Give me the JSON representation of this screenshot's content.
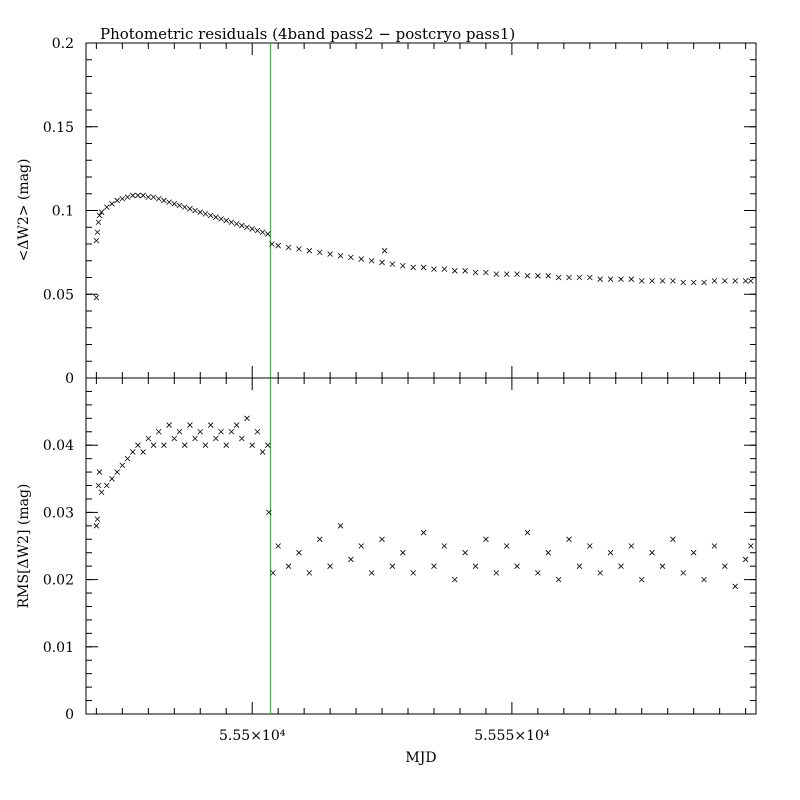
{
  "chart_data": {
    "type": "scatter",
    "title": "Photometric residuals (4band pass2 − postcryo pass1)",
    "xlabel": "MJD",
    "xlim": [
      55468,
      55597
    ],
    "xticks": [
      {
        "value": 55500,
        "label": "5.55×10⁴"
      },
      {
        "value": 55550,
        "label": "5.555×10⁴"
      }
    ],
    "vline": {
      "x": 55503.5,
      "color": "#00cc00"
    },
    "marker": "x",
    "panels": [
      {
        "name": "mean",
        "ylabel": "<ΔW2> (mag)",
        "ylim": [
          0,
          0.2
        ],
        "yticks": [
          {
            "value": 0,
            "label": "0"
          },
          {
            "value": 0.05,
            "label": "0.05"
          },
          {
            "value": 0.1,
            "label": "0.1"
          },
          {
            "value": 0.15,
            "label": "0.15"
          },
          {
            "value": 0.2,
            "label": "0.2"
          }
        ],
        "points": [
          [
            55470.0,
            0.048
          ],
          [
            55470.0,
            0.082
          ],
          [
            55470.2,
            0.087
          ],
          [
            55470.4,
            0.093
          ],
          [
            55470.6,
            0.097
          ],
          [
            55471,
            0.099
          ],
          [
            55472,
            0.102
          ],
          [
            55473,
            0.104
          ],
          [
            55474,
            0.106
          ],
          [
            55475,
            0.107
          ],
          [
            55476,
            0.108
          ],
          [
            55477,
            0.109
          ],
          [
            55478,
            0.109
          ],
          [
            55479,
            0.109
          ],
          [
            55480,
            0.108
          ],
          [
            55481,
            0.108
          ],
          [
            55482,
            0.107
          ],
          [
            55483,
            0.106
          ],
          [
            55484,
            0.105
          ],
          [
            55485,
            0.104
          ],
          [
            55486,
            0.103
          ],
          [
            55487,
            0.102
          ],
          [
            55488,
            0.101
          ],
          [
            55489,
            0.1
          ],
          [
            55490,
            0.099
          ],
          [
            55491,
            0.098
          ],
          [
            55492,
            0.097
          ],
          [
            55493,
            0.096
          ],
          [
            55494,
            0.095
          ],
          [
            55495,
            0.094
          ],
          [
            55496,
            0.093
          ],
          [
            55497,
            0.092
          ],
          [
            55498,
            0.091
          ],
          [
            55499,
            0.09
          ],
          [
            55500,
            0.089
          ],
          [
            55501,
            0.088
          ],
          [
            55502,
            0.087
          ],
          [
            55503,
            0.086
          ],
          [
            55503.8,
            0.08
          ],
          [
            55505,
            0.079
          ],
          [
            55507,
            0.078
          ],
          [
            55509,
            0.077
          ],
          [
            55511,
            0.076
          ],
          [
            55513,
            0.075
          ],
          [
            55515,
            0.074
          ],
          [
            55517,
            0.073
          ],
          [
            55519,
            0.072
          ],
          [
            55521,
            0.071
          ],
          [
            55523,
            0.07
          ],
          [
            55525,
            0.069
          ],
          [
            55525.5,
            0.076
          ],
          [
            55527,
            0.068
          ],
          [
            55529,
            0.067
          ],
          [
            55531,
            0.066
          ],
          [
            55533,
            0.066
          ],
          [
            55535,
            0.065
          ],
          [
            55537,
            0.065
          ],
          [
            55539,
            0.064
          ],
          [
            55541,
            0.064
          ],
          [
            55543,
            0.063
          ],
          [
            55545,
            0.063
          ],
          [
            55547,
            0.062
          ],
          [
            55549,
            0.062
          ],
          [
            55551,
            0.062
          ],
          [
            55553,
            0.061
          ],
          [
            55555,
            0.061
          ],
          [
            55557,
            0.061
          ],
          [
            55559,
            0.06
          ],
          [
            55561,
            0.06
          ],
          [
            55563,
            0.06
          ],
          [
            55565,
            0.06
          ],
          [
            55567,
            0.059
          ],
          [
            55569,
            0.059
          ],
          [
            55571,
            0.059
          ],
          [
            55573,
            0.059
          ],
          [
            55575,
            0.058
          ],
          [
            55577,
            0.058
          ],
          [
            55579,
            0.058
          ],
          [
            55581,
            0.058
          ],
          [
            55583,
            0.057
          ],
          [
            55585,
            0.057
          ],
          [
            55587,
            0.057
          ],
          [
            55589,
            0.058
          ],
          [
            55591,
            0.058
          ],
          [
            55593,
            0.058
          ],
          [
            55595,
            0.058
          ],
          [
            55596,
            0.058
          ]
        ]
      },
      {
        "name": "rms",
        "ylabel": "RMS[ΔW2] (mag)",
        "ylim": [
          0,
          0.05
        ],
        "yticks": [
          {
            "value": 0,
            "label": "0"
          },
          {
            "value": 0.01,
            "label": "0.01"
          },
          {
            "value": 0.02,
            "label": "0.02"
          },
          {
            "value": 0.03,
            "label": "0.03"
          },
          {
            "value": 0.04,
            "label": "0.04"
          }
        ],
        "points": [
          [
            55470.0,
            0.028
          ],
          [
            55470.2,
            0.029
          ],
          [
            55470.4,
            0.034
          ],
          [
            55470.6,
            0.036
          ],
          [
            55471,
            0.033
          ],
          [
            55472,
            0.034
          ],
          [
            55473,
            0.035
          ],
          [
            55474,
            0.036
          ],
          [
            55475,
            0.037
          ],
          [
            55476,
            0.038
          ],
          [
            55477,
            0.039
          ],
          [
            55478,
            0.04
          ],
          [
            55479,
            0.039
          ],
          [
            55480,
            0.041
          ],
          [
            55481,
            0.04
          ],
          [
            55482,
            0.042
          ],
          [
            55483,
            0.04
          ],
          [
            55484,
            0.043
          ],
          [
            55485,
            0.041
          ],
          [
            55486,
            0.042
          ],
          [
            55487,
            0.04
          ],
          [
            55488,
            0.043
          ],
          [
            55489,
            0.041
          ],
          [
            55490,
            0.042
          ],
          [
            55491,
            0.04
          ],
          [
            55492,
            0.043
          ],
          [
            55493,
            0.041
          ],
          [
            55494,
            0.042
          ],
          [
            55495,
            0.04
          ],
          [
            55496,
            0.042
          ],
          [
            55497,
            0.043
          ],
          [
            55498,
            0.041
          ],
          [
            55499,
            0.044
          ],
          [
            55500,
            0.04
          ],
          [
            55501,
            0.042
          ],
          [
            55502,
            0.039
          ],
          [
            55503,
            0.04
          ],
          [
            55503.2,
            0.03
          ],
          [
            55504,
            0.021
          ],
          [
            55505,
            0.025
          ],
          [
            55507,
            0.022
          ],
          [
            55509,
            0.024
          ],
          [
            55511,
            0.021
          ],
          [
            55513,
            0.026
          ],
          [
            55515,
            0.022
          ],
          [
            55517,
            0.028
          ],
          [
            55519,
            0.023
          ],
          [
            55521,
            0.025
          ],
          [
            55523,
            0.021
          ],
          [
            55525,
            0.026
          ],
          [
            55527,
            0.022
          ],
          [
            55529,
            0.024
          ],
          [
            55531,
            0.021
          ],
          [
            55533,
            0.027
          ],
          [
            55535,
            0.022
          ],
          [
            55537,
            0.025
          ],
          [
            55539,
            0.02
          ],
          [
            55541,
            0.024
          ],
          [
            55543,
            0.022
          ],
          [
            55545,
            0.026
          ],
          [
            55547,
            0.021
          ],
          [
            55549,
            0.025
          ],
          [
            55551,
            0.022
          ],
          [
            55553,
            0.027
          ],
          [
            55555,
            0.021
          ],
          [
            55557,
            0.024
          ],
          [
            55559,
            0.02
          ],
          [
            55561,
            0.026
          ],
          [
            55563,
            0.022
          ],
          [
            55565,
            0.025
          ],
          [
            55567,
            0.021
          ],
          [
            55569,
            0.024
          ],
          [
            55571,
            0.022
          ],
          [
            55573,
            0.025
          ],
          [
            55575,
            0.02
          ],
          [
            55577,
            0.024
          ],
          [
            55579,
            0.022
          ],
          [
            55581,
            0.026
          ],
          [
            55583,
            0.021
          ],
          [
            55585,
            0.024
          ],
          [
            55587,
            0.02
          ],
          [
            55589,
            0.025
          ],
          [
            55591,
            0.022
          ],
          [
            55593,
            0.019
          ],
          [
            55595,
            0.023
          ],
          [
            55596,
            0.025
          ]
        ]
      }
    ]
  }
}
